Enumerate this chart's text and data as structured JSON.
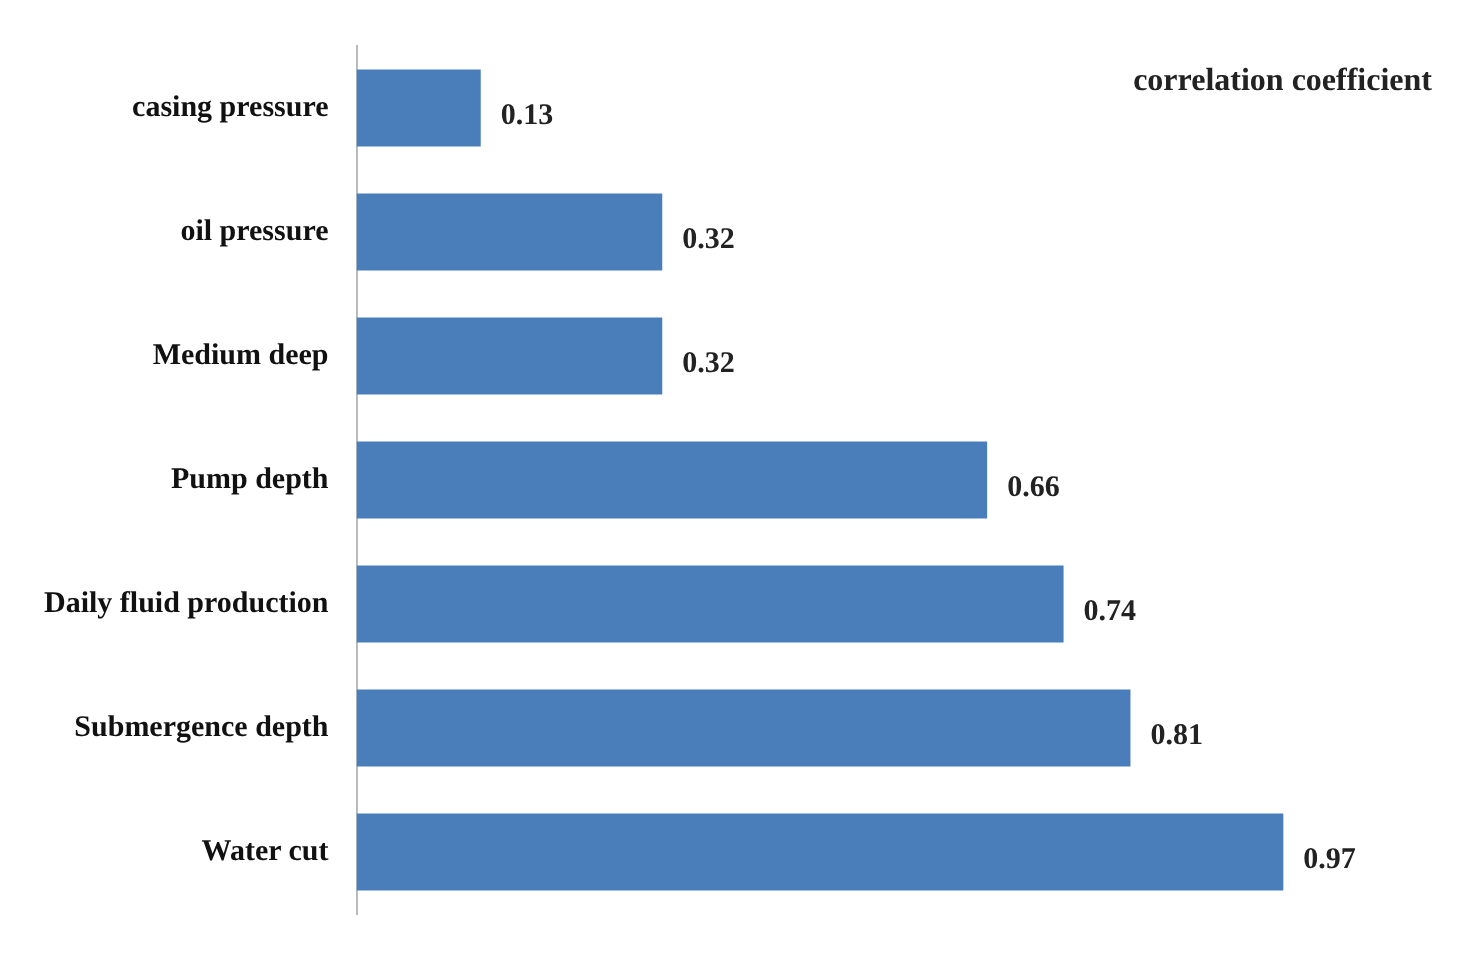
{
  "chart_data": {
    "type": "bar",
    "orientation": "horizontal",
    "title": "correlation coefficient",
    "categories": [
      "casing pressure",
      "oil pressure",
      "Medium deep",
      "Pump depth",
      "Daily fluid production",
      "Submergence depth",
      "Water cut"
    ],
    "values": [
      0.13,
      0.32,
      0.32,
      0.66,
      0.74,
      0.81,
      0.97
    ],
    "color": "#4a7ebb",
    "data_labels": true
  }
}
